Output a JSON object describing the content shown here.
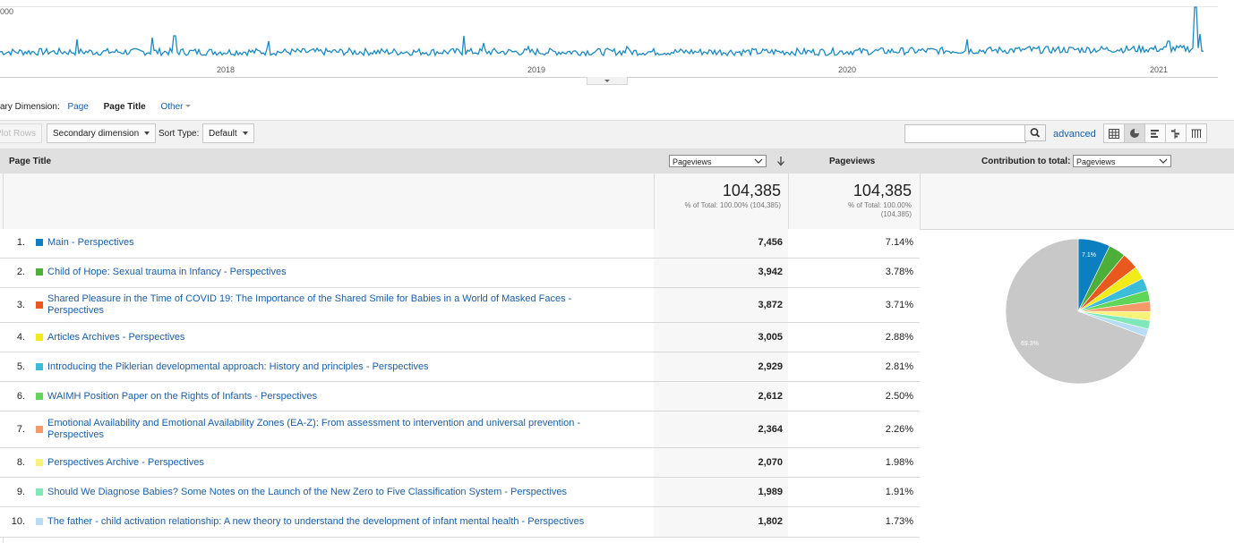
{
  "timeline": {
    "y_label": "000",
    "years": [
      "2018",
      "2019",
      "2020",
      "2021"
    ],
    "line_color": "#1b8ac3"
  },
  "primary_dimension": {
    "label": "ary Dimension:",
    "options": [
      "Page",
      "Page Title",
      "Other"
    ],
    "active": "Page Title"
  },
  "toolbar": {
    "plot_rows": "Plot Rows",
    "secondary_dimension": "Secondary dimension",
    "sort_type_label": "Sort Type:",
    "sort_type_value": "Default",
    "search_value": "",
    "advanced": "advanced",
    "view_icons": [
      "table-view-icon",
      "pie-view-icon",
      "performance-view-icon",
      "comparison-view-icon",
      "pivot-view-icon"
    ]
  },
  "table": {
    "dimension_header": "Page Title",
    "metric_select": "Pageviews",
    "metric_header": "Pageviews",
    "contribution_label": "Contribution to total:",
    "contribution_select": "Pageviews",
    "totals": {
      "pageviews": "104,385",
      "pageviews_sub": "% of Total: 100.00% (104,385)",
      "pct": "104,385",
      "pct_sub_1": "% of Total: 100.00%",
      "pct_sub_2": "(104,385)"
    },
    "rows": [
      {
        "rank": "1.",
        "title": "Main - Perspectives",
        "pageviews": "7,456",
        "pct": "7.14%",
        "color": "#0b7fc0"
      },
      {
        "rank": "2.",
        "title": "Child of Hope: Sexual trauma in Infancy - Perspectives",
        "pageviews": "3,942",
        "pct": "3.78%",
        "color": "#4dae3a"
      },
      {
        "rank": "3.",
        "title": "Shared Pleasure in the Time of COVID 19: The Importance of the Shared Smile for Babies in a World of Masked Faces - Perspectives",
        "pageviews": "3,872",
        "pct": "3.71%",
        "color": "#e9581d"
      },
      {
        "rank": "4.",
        "title": "Articles Archives - Perspectives",
        "pageviews": "3,005",
        "pct": "2.88%",
        "color": "#f2ea19"
      },
      {
        "rank": "5.",
        "title": "Introducing the Piklerian developmental approach: History and principles - Perspectives",
        "pageviews": "2,929",
        "pct": "2.81%",
        "color": "#3bbcd8"
      },
      {
        "rank": "6.",
        "title": "WAIMH Position Paper on the Rights of Infants - Perspectives",
        "pageviews": "2,612",
        "pct": "2.50%",
        "color": "#5fd65a"
      },
      {
        "rank": "7.",
        "title": "Emotional Availability and Emotional Availability Zones (EA-Z): From assessment to intervention and universal prevention - Perspectives",
        "pageviews": "2,364",
        "pct": "2.26%",
        "color": "#f49a6a"
      },
      {
        "rank": "8.",
        "title": "Perspectives Archive - Perspectives",
        "pageviews": "2,070",
        "pct": "1.98%",
        "color": "#f7f27a"
      },
      {
        "rank": "9.",
        "title": "Should We Diagnose Babies? Some Notes on the Launch of the New Zero to Five Classification System - Perspectives",
        "pageviews": "1,989",
        "pct": "1.91%",
        "color": "#7ee8b9"
      },
      {
        "rank": "10.",
        "title": "The father - child activation relationship: A new theory to understand the development of infant mental health - Perspectives",
        "pageviews": "1,802",
        "pct": "1.73%",
        "color": "#b7dcf3"
      }
    ]
  },
  "pie": {
    "slices": [
      7.14,
      3.78,
      3.71,
      2.88,
      2.81,
      2.5,
      2.26,
      1.98,
      1.91,
      1.73,
      69.3
    ],
    "colors": [
      "#0b7fc0",
      "#4dae3a",
      "#e9581d",
      "#f2ea19",
      "#3bbcd8",
      "#5fd65a",
      "#f49a6a",
      "#f7f27a",
      "#7ee8b9",
      "#b7dcf3",
      "#c8c8c8"
    ],
    "first_label": "7.1%",
    "other_label": "69.3%"
  }
}
